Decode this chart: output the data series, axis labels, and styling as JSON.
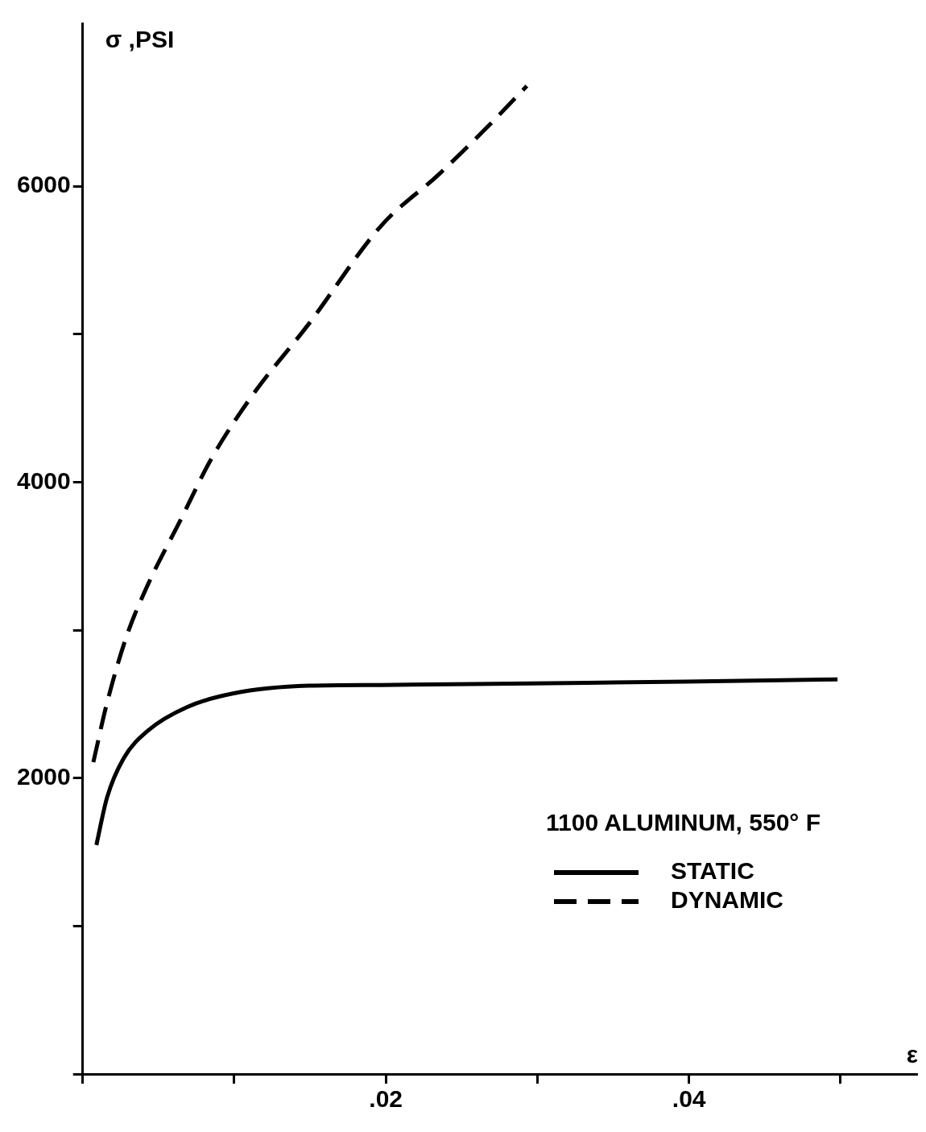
{
  "chart_data": {
    "type": "line",
    "xlabel": "ε",
    "ylabel": "σ ,PSI",
    "legend_title": "1100 ALUMINUM, 550° F",
    "legend": "bottom right",
    "grid": false,
    "marker": "none",
    "xlim": [
      0,
      0.055
    ],
    "xticks": [
      {
        "value": 0,
        "label": null
      },
      {
        "value": 0.01,
        "label": null
      },
      {
        "value": 0.02,
        "label": ".02"
      },
      {
        "value": 0.03,
        "label": null
      },
      {
        "value": 0.04,
        "label": ".04"
      },
      {
        "value": 0.05,
        "label": null
      }
    ],
    "ylim": [
      0,
      7100
    ],
    "yticks": [
      {
        "value": 0,
        "label": null
      },
      {
        "value": 1000,
        "label": null
      },
      2000,
      {
        "value": 3000,
        "label": null
      },
      4000,
      {
        "value": 5000,
        "label": null
      },
      6000
    ],
    "series": [
      {
        "name": "STATIC",
        "color": "#000000",
        "line_style": "solid",
        "x": [
          0.0009,
          0.0016,
          0.0027,
          0.0043,
          0.0069,
          0.0099,
          0.0149,
          0.0197,
          0.0296,
          0.0398,
          0.0498
        ],
        "values": [
          1547,
          1867,
          2133,
          2320,
          2480,
          2571,
          2624,
          2629,
          2640,
          2651,
          2667
        ]
      },
      {
        "name": "DYNAMIC",
        "color": "#000000",
        "line_style": "dashed",
        "x": [
          0.0007,
          0.0016,
          0.0029,
          0.0043,
          0.0064,
          0.0085,
          0.0112,
          0.0149,
          0.0197,
          0.0235,
          0.0267,
          0.0293
        ],
        "values": [
          2107,
          2507,
          2960,
          3307,
          3733,
          4160,
          4587,
          5067,
          5733,
          6080,
          6400,
          6677
        ]
      }
    ]
  }
}
